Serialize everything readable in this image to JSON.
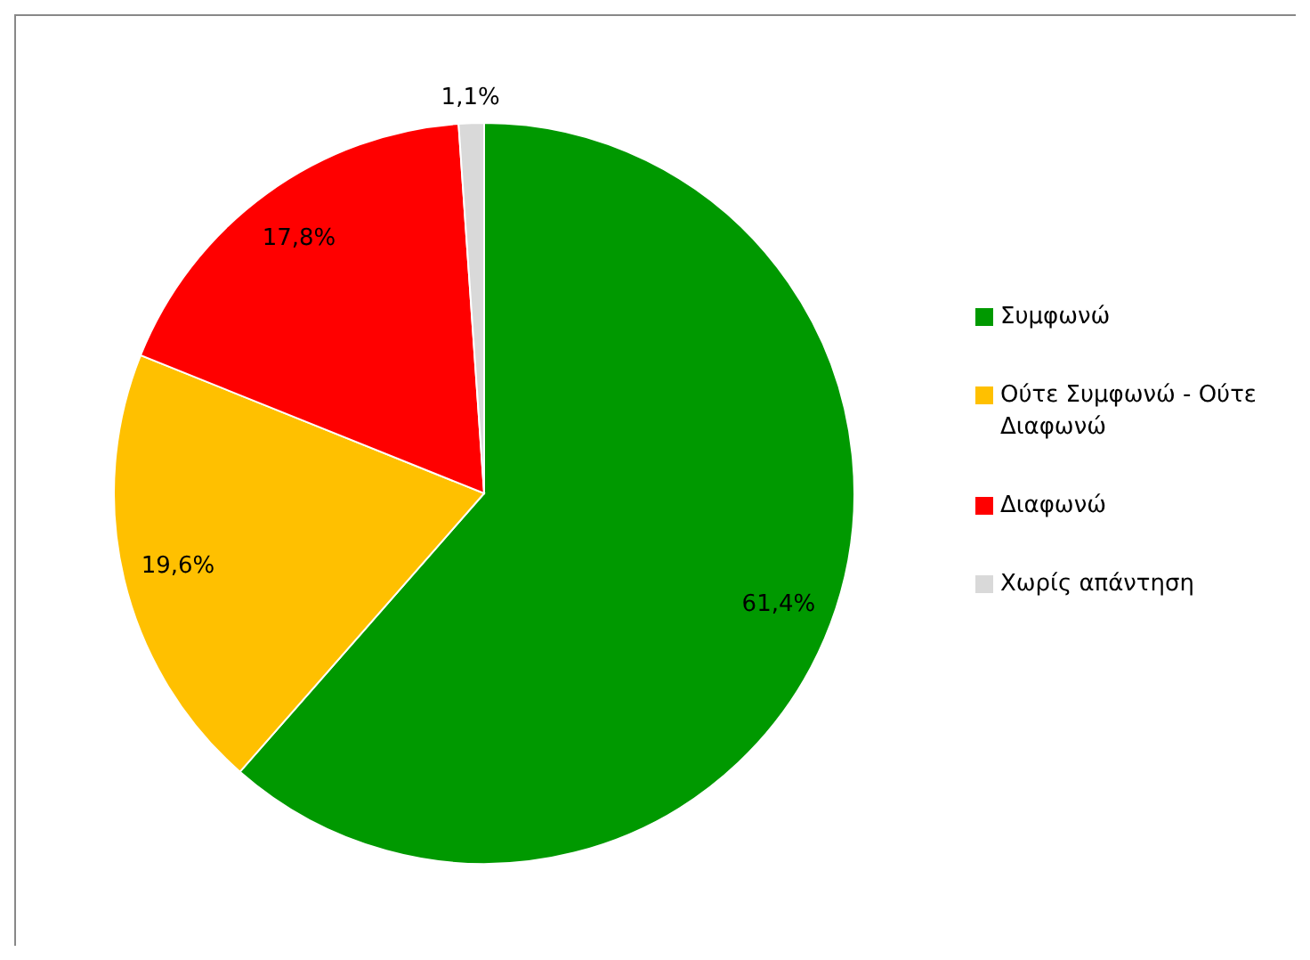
{
  "chart_data": {
    "type": "pie",
    "categories": [
      "Συμφωνώ",
      "Ούτε Συμφωνώ - Ούτε Διαφωνώ",
      "Διαφωνώ",
      "Χωρίς απάντηση"
    ],
    "values": [
      61.4,
      19.6,
      17.8,
      1.1
    ],
    "colors": [
      "#009900",
      "#ffc000",
      "#ff0000",
      "#d9d9d9"
    ],
    "value_labels": [
      "61,4%",
      "19,6%",
      "17,8%",
      "1,1%"
    ],
    "legend": "right"
  }
}
